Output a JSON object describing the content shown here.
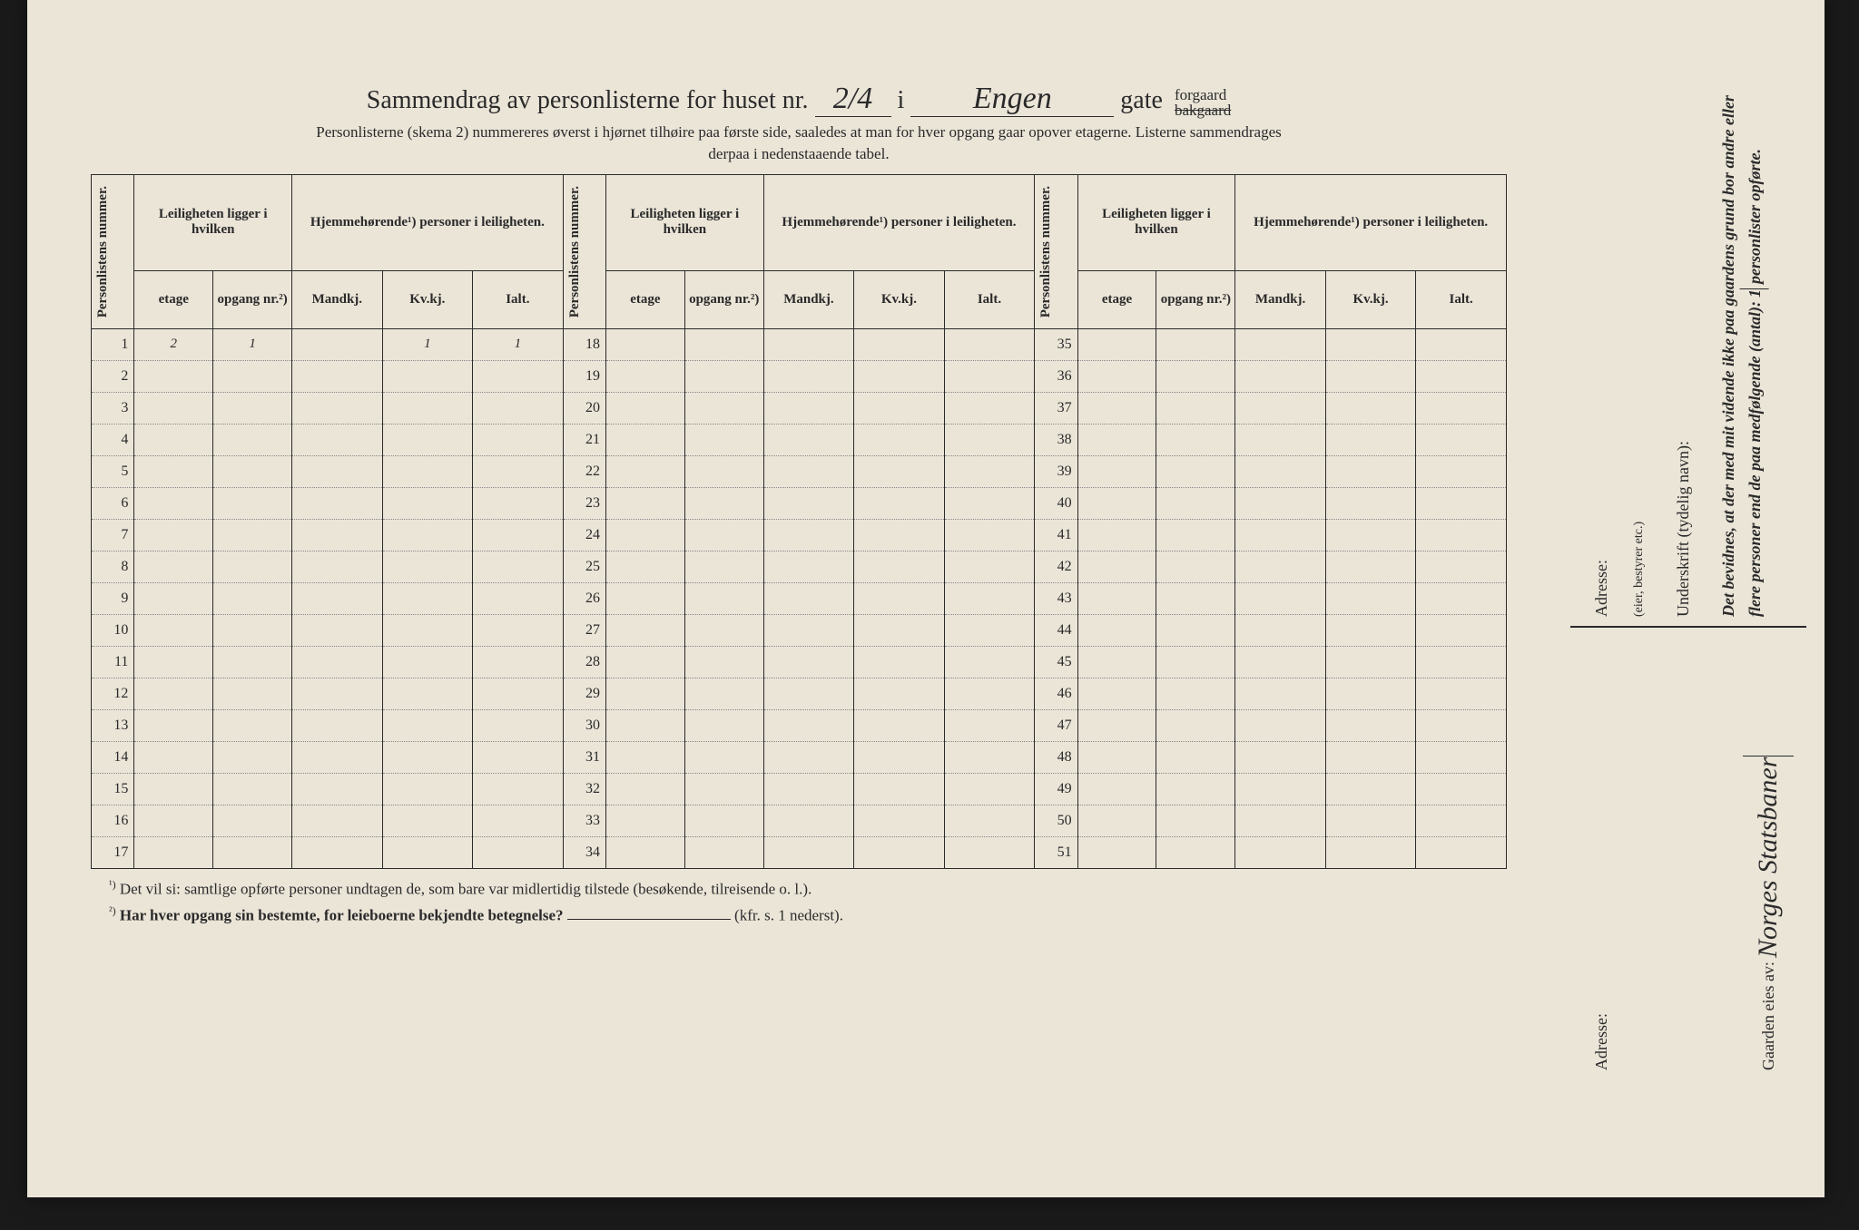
{
  "title": {
    "prefix": "Sammendrag av personlisterne for huset nr.",
    "house_nr": "2/4",
    "i": "i",
    "street": "Engen",
    "gate": "gate",
    "forgaard": "forgaard",
    "bakgaard": "bakgaard"
  },
  "subtitle1": "Personlisterne (skema 2) nummereres øverst i hjørnet tilhøire paa første side, saaledes at man for hver opgang gaar opover etagerne.  Listerne sammendrages",
  "subtitle2": "derpaa i nedenstaaende tabel.",
  "headers": {
    "personlistens": "Personlistens nummer.",
    "leiligheten": "Leiligheten ligger i hvilken",
    "hjemme": "Hjemmehørende¹) personer i leiligheten.",
    "etage": "etage",
    "opgang": "opgang nr.²)",
    "mandkj": "Mandkj.",
    "kvkj": "Kv.kj.",
    "ialt": "Ialt."
  },
  "row1": {
    "etage": "2",
    "opgang": "1",
    "kvkj": "1",
    "ialt": "1"
  },
  "footnote1_sup": "¹)",
  "footnote1": "Det vil si: samtlige opførte personer undtagen de, som bare var midlertidig tilstede (besøkende, tilreisende o. l.).",
  "footnote2_sup": "²)",
  "footnote2a": "Har hver opgang sin bestemte, for leieboerne bekjendte betegnelse?",
  "footnote2b": "(kfr. s. 1 nederst).",
  "side": {
    "attest": "Det bevidnes, at der med mit vidende ikke paa gaardens grund bor andre eller flere personer end de paa medfølgende (antal):",
    "count": "1",
    "attest2": "personlister opførte.",
    "underskrift": "Underskrift (tydelig navn):",
    "role": "(eier, bestyrer etc.)",
    "adresse": "Adresse:",
    "gaarden": "Gaarden eies av:",
    "signature": "Norges Statsbaner"
  },
  "colors": {
    "paper": "#ebe5d8",
    "ink": "#2a2a2a",
    "dotted": "#888888",
    "background": "#1a1a1a"
  }
}
